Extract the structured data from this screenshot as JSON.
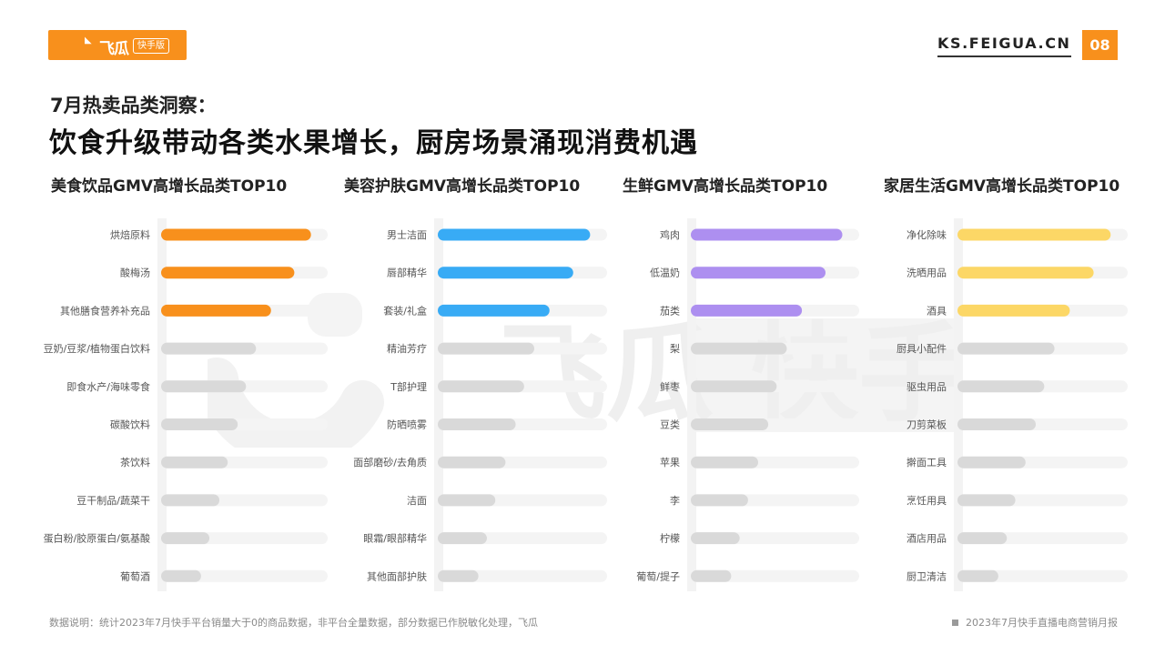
{
  "header": {
    "logo_text": "飞瓜",
    "logo_badge": "快手版",
    "site": "KS.FEIGUA.CN",
    "page_number": "08"
  },
  "subtitle": "7月热卖品类洞察：",
  "headline": "饮食升级带动各类水果增长，厨房场景涌现消费机遇",
  "watermark": {
    "text": "飞瓜 快手版"
  },
  "footer": {
    "note": "数据说明：统计2023年7月快手平台销量大于0的商品数据，非平台全量数据，部分数据已作脱敏化处理，飞瓜",
    "source": "2023年7月快手直播电商营销月报"
  },
  "colors": {
    "food": "#f8901c",
    "beauty": "#38abf5",
    "fresh": "#ad8ff0",
    "home": "#fcd766",
    "gray_bar": "#d9d9d9",
    "track": "#f4f4f4"
  },
  "chart_data": [
    {
      "type": "bar",
      "orientation": "horizontal",
      "title": "美食饮品GMV高增长品类TOP10",
      "categories": [
        "烘焙原料",
        "酸梅汤",
        "其他膳食营养补充品",
        "豆奶/豆浆/植物蛋白饮料",
        "即食水产/海味零食",
        "碳酸饮料",
        "茶饮料",
        "豆干制品/蔬菜干",
        "蛋白粉/胶原蛋白/氨基酸",
        "葡萄酒"
      ],
      "values": [
        90,
        80,
        66,
        57,
        51,
        46,
        40,
        35,
        29,
        24
      ],
      "xlim": [
        0,
        100
      ],
      "highlight_top": 3,
      "color_key": "food"
    },
    {
      "type": "bar",
      "orientation": "horizontal",
      "title": "美容护肤GMV高增长品类TOP10",
      "categories": [
        "男士洁面",
        "唇部精华",
        "套装/礼盒",
        "精油芳疗",
        "T部护理",
        "防晒喷雾",
        "面部磨砂/去角质",
        "洁面",
        "眼霜/眼部精华",
        "其他面部护肤"
      ],
      "values": [
        90,
        80,
        66,
        57,
        51,
        46,
        40,
        34,
        29,
        24
      ],
      "xlim": [
        0,
        100
      ],
      "highlight_top": 3,
      "color_key": "beauty"
    },
    {
      "type": "bar",
      "orientation": "horizontal",
      "title": "生鲜GMV高增长品类TOP10",
      "categories": [
        "鸡肉",
        "低温奶",
        "茄类",
        "梨",
        "鲜枣",
        "豆类",
        "苹果",
        "李",
        "柠檬",
        "葡萄/提子"
      ],
      "values": [
        90,
        80,
        66,
        57,
        51,
        46,
        40,
        34,
        29,
        24
      ],
      "xlim": [
        0,
        100
      ],
      "highlight_top": 3,
      "color_key": "fresh"
    },
    {
      "type": "bar",
      "orientation": "horizontal",
      "title": "家居生活GMV高增长品类TOP10",
      "categories": [
        "净化除味",
        "洗晒用品",
        "酒具",
        "厨具小配件",
        "驱虫用品",
        "刀剪菜板",
        "擀面工具",
        "烹饪用具",
        "酒店用品",
        "厨卫清洁"
      ],
      "values": [
        90,
        80,
        66,
        57,
        51,
        46,
        40,
        34,
        29,
        24
      ],
      "xlim": [
        0,
        100
      ],
      "highlight_top": 3,
      "color_key": "home"
    }
  ]
}
